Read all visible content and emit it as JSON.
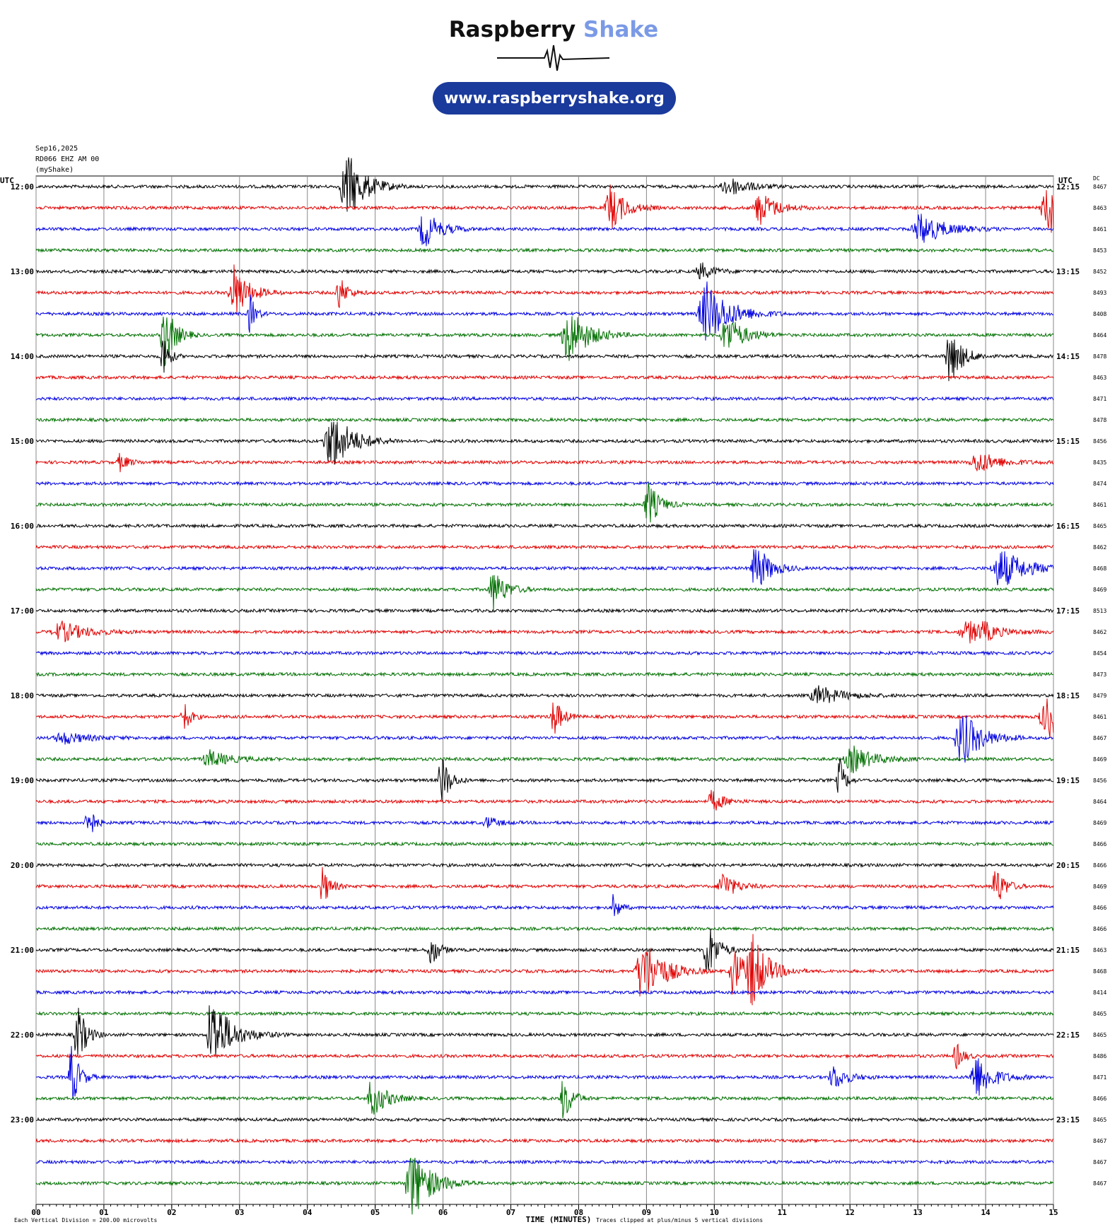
{
  "chart_data": {
    "type": "helicorder",
    "header": {
      "brand_1": "Raspberry",
      "brand_2": "Shake",
      "url": "www.raspberryshake.org"
    },
    "info": {
      "date": "Sep16,2025",
      "station": "RD066 EHZ AM 00",
      "network": "(myShake)"
    },
    "left_axis_label": "UTC",
    "right_axis_label": "UTC",
    "dc_label": "DC",
    "left_times": [
      "12:00",
      "13:00",
      "14:00",
      "15:00",
      "16:00",
      "17:00",
      "18:00",
      "19:00",
      "20:00",
      "21:00",
      "22:00",
      "23:00"
    ],
    "right_times": [
      "12:15",
      "13:15",
      "14:15",
      "15:15",
      "16:15",
      "17:15",
      "18:15",
      "19:15",
      "20:15",
      "21:15",
      "22:15",
      "23:15"
    ],
    "dc_values": [
      8467,
      8463,
      8461,
      8453,
      8452,
      8493,
      8408,
      8464,
      8478,
      8463,
      8471,
      8478,
      8456,
      8435,
      8474,
      8461,
      8465,
      8462,
      8468,
      8469,
      8513,
      8462,
      8454,
      8473,
      8479,
      8461,
      8467,
      8469,
      8456,
      8464,
      8469,
      8466,
      8466,
      8469,
      8466,
      8466,
      8463,
      8468,
      8414,
      8465,
      8465,
      8486,
      8471,
      8466,
      8465,
      8467,
      8467,
      8467
    ],
    "trace_colors": [
      "#000000",
      "#e00000",
      "#0000e0",
      "#007000"
    ],
    "xlim": [
      0,
      15
    ],
    "xticks": [
      {
        "value": 0,
        "label": "00"
      },
      {
        "value": 1,
        "label": "01"
      },
      {
        "value": 2,
        "label": "02"
      },
      {
        "value": 3,
        "label": "03"
      },
      {
        "value": 4,
        "label": "04"
      },
      {
        "value": 5,
        "label": "05"
      },
      {
        "value": 6,
        "label": "06"
      },
      {
        "value": 7,
        "label": "07"
      },
      {
        "value": 8,
        "label": "08"
      },
      {
        "value": 9,
        "label": "09"
      },
      {
        "value": 10,
        "label": "10"
      },
      {
        "value": 11,
        "label": "11"
      },
      {
        "value": 12,
        "label": "12"
      },
      {
        "value": 13,
        "label": "13"
      },
      {
        "value": 14,
        "label": "14"
      },
      {
        "value": 15,
        "label": "15"
      }
    ],
    "xlabel": "TIME (MINUTES)",
    "footer_left": "Each Vertical Division =  200.00 microvolts",
    "footer_right": "Traces clipped at plus/minus 5 vertical divisions"
  }
}
